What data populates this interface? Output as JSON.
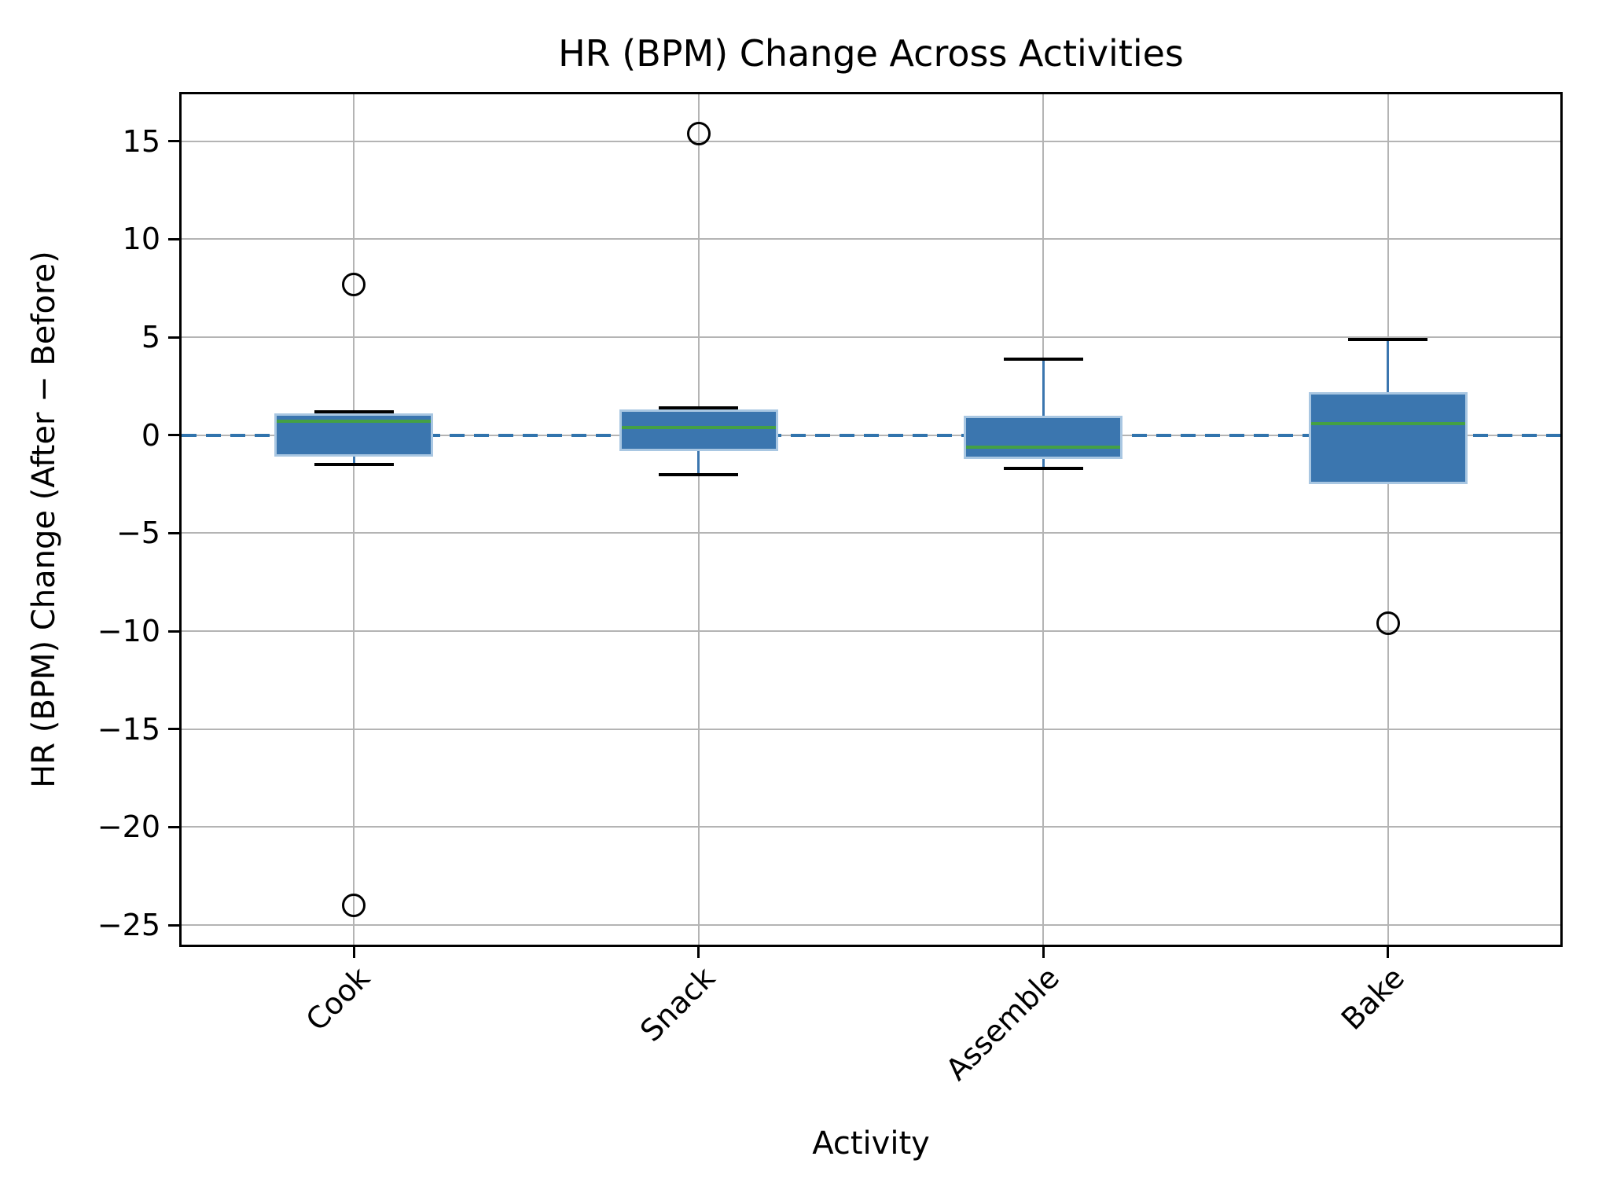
{
  "figure": {
    "title": "HR (BPM) Change Across Activities",
    "xlabel": "Activity",
    "ylabel": "HR (BPM) Change (After − Before)"
  },
  "chart_data": {
    "type": "boxplot",
    "title": "HR (BPM) Change Across Activities",
    "xlabel": "Activity",
    "ylabel": "HR (BPM) Change (After − Before)",
    "categories": [
      "Cook",
      "Snack",
      "Assemble",
      "Bake"
    ],
    "positions": [
      1,
      2,
      3,
      4
    ],
    "xlim": [
      0.5,
      4.5
    ],
    "ylim": [
      -26,
      17.4
    ],
    "yticks": [
      15,
      10,
      5,
      0,
      -5,
      -10,
      -15,
      -20,
      -25
    ],
    "ytick_labels": [
      "15",
      "10",
      "5",
      "0",
      "−5",
      "−10",
      "−15",
      "−20",
      "−25"
    ],
    "grid": true,
    "legend": false,
    "zero_reference_line": {
      "y": 0,
      "style": "dashed",
      "color": "#3174ad"
    },
    "boxes": [
      {
        "category": "Cook",
        "whisker_low": -1.5,
        "q1": -1.1,
        "median": 0.7,
        "q3": 1.1,
        "whisker_high": 1.2,
        "outliers": [
          7.7,
          -24.0
        ]
      },
      {
        "category": "Snack",
        "whisker_low": -2.0,
        "q1": -0.8,
        "median": 0.4,
        "q3": 1.3,
        "whisker_high": 1.4,
        "outliers": [
          15.4
        ]
      },
      {
        "category": "Assemble",
        "whisker_low": -1.7,
        "q1": -1.2,
        "median": -0.6,
        "q3": 1.0,
        "whisker_high": 3.9,
        "outliers": []
      },
      {
        "category": "Bake",
        "whisker_low": -2.4,
        "q1": -2.5,
        "median": 0.6,
        "q3": 2.2,
        "whisker_high": 4.9,
        "outliers": [
          -9.6
        ]
      }
    ],
    "colors": {
      "box_fill": "#3b76af",
      "box_edge": "#a9c7e2",
      "median": "#44a044",
      "whisker": "#3b76af",
      "cap": "#000000",
      "outlier_edge": "#000000",
      "grid": "#b4b4b4",
      "spine": "#000000",
      "zero_line": "#3174ad",
      "background": "#ffffff"
    }
  }
}
